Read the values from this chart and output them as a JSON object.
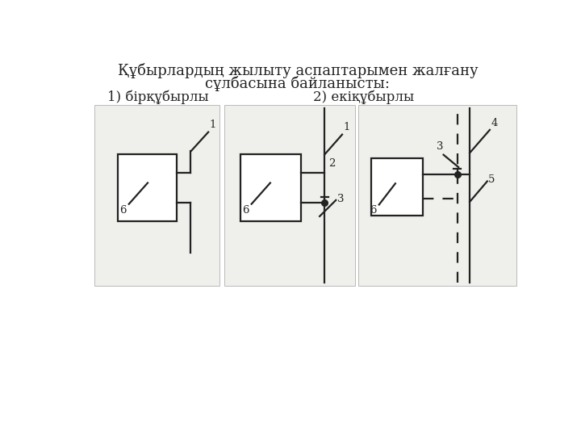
{
  "title_line1": "Құбырлардың жылыту аспаптарымен жалғану",
  "title_line2": "сұлбасына байланысты:",
  "label1": "1) бірқұбырлы",
  "label2": "2) екіқұбырлы",
  "bg_color": "#ffffff",
  "diagram_bg": "#efefeb",
  "line_color": "#222222",
  "title_fontsize": 13,
  "label_fontsize": 12
}
